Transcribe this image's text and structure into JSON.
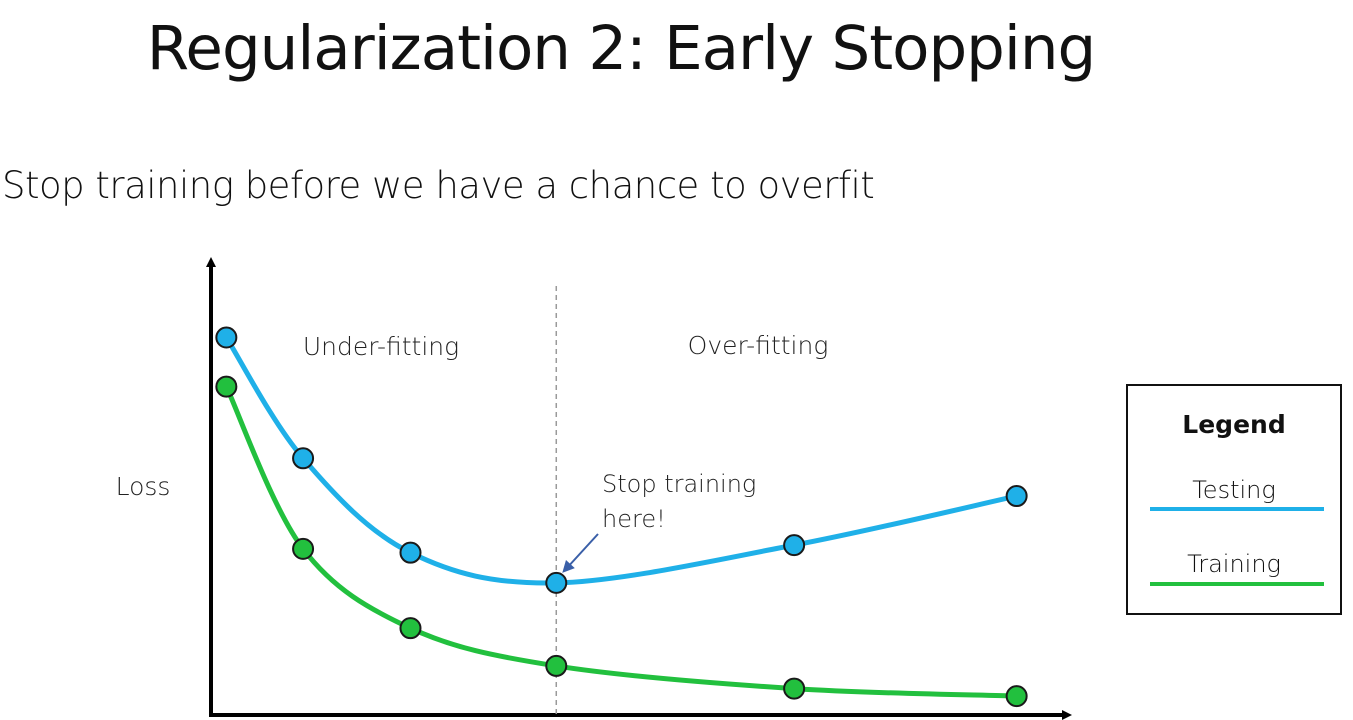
{
  "slide": {
    "title": "Regularization 2: Early Stopping",
    "subtitle": "Stop training before we have a chance to overfit"
  },
  "colors": {
    "testing": "#1fb0e8",
    "training": "#22c03e",
    "axis": "#000000",
    "divider": "#9a9a9a",
    "arrow": "#3a5fa8"
  },
  "legend": {
    "title": "Legend",
    "items": [
      {
        "label": "Testing",
        "color": "#1fb0e8"
      },
      {
        "label": "Training",
        "color": "#22c03e"
      }
    ]
  },
  "chart_data": {
    "type": "line",
    "ylabel": "Loss",
    "xlabel": "",
    "region_labels": [
      "Under-fitting",
      "Over-fitting"
    ],
    "annotation": {
      "lines": [
        "Stop training",
        "here!"
      ]
    },
    "series": [
      {
        "name": "Testing",
        "points": [
          [
            0.2,
            10.0
          ],
          [
            1.2,
            6.8
          ],
          [
            2.6,
            4.3
          ],
          [
            4.5,
            3.5
          ],
          [
            7.6,
            4.5
          ],
          [
            10.5,
            5.8
          ]
        ]
      },
      {
        "name": "Training",
        "points": [
          [
            0.2,
            8.7
          ],
          [
            1.2,
            4.4
          ],
          [
            2.6,
            2.3
          ],
          [
            4.5,
            1.3
          ],
          [
            7.6,
            0.7
          ],
          [
            10.5,
            0.5
          ]
        ]
      }
    ],
    "stop_point": {
      "x": 4.5,
      "y": 3.5
    },
    "xlim": [
      0,
      11
    ],
    "ylim": [
      0,
      12
    ]
  }
}
